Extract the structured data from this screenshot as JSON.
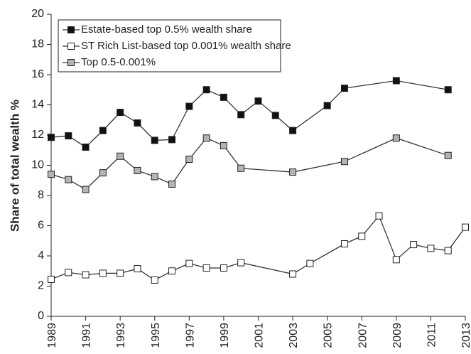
{
  "chart_data": {
    "type": "line",
    "y_label": "Share of total wealth %",
    "xlim": [
      1989,
      2013
    ],
    "xticks": [
      1989,
      1991,
      1993,
      1995,
      1997,
      1999,
      2001,
      2003,
      2005,
      2007,
      2009,
      2011,
      2013
    ],
    "ylim": [
      0,
      20
    ],
    "yticks": [
      0,
      2,
      4,
      6,
      8,
      10,
      12,
      14,
      16,
      18,
      20
    ],
    "grid": false,
    "legend": "upper left",
    "series": [
      {
        "name": "Estate-based top 0.5% wealth share",
        "color": "#111111",
        "x": [
          1989,
          1990,
          1991,
          1992,
          1993,
          1994,
          1995,
          1996,
          1997,
          1998,
          1999,
          2000,
          2001,
          2002,
          2003,
          2005,
          2006,
          2009,
          2012
        ],
        "values": [
          11.85,
          11.95,
          11.2,
          12.3,
          13.5,
          12.8,
          11.65,
          11.7,
          13.9,
          15.0,
          14.5,
          13.35,
          14.25,
          13.3,
          12.3,
          13.95,
          15.1,
          15.6,
          15.0
        ]
      },
      {
        "name": "ST Rich List-based top 0.001% wealth share",
        "color": "#ffffff",
        "x": [
          1989,
          1990,
          1991,
          1992,
          1993,
          1994,
          1995,
          1996,
          1997,
          1998,
          1999,
          2000,
          2003,
          2004,
          2006,
          2007,
          2008,
          2009,
          2010,
          2011,
          2012,
          2013
        ],
        "values": [
          2.45,
          2.9,
          2.75,
          2.85,
          2.85,
          3.15,
          2.4,
          3.0,
          3.5,
          3.2,
          3.2,
          3.55,
          2.8,
          3.5,
          4.8,
          5.3,
          6.65,
          3.75,
          4.75,
          4.5,
          4.35,
          5.9
        ]
      },
      {
        "name": "Top 0.5-0.001%",
        "color": "#b4b4b4",
        "x": [
          1989,
          1990,
          1991,
          1992,
          1993,
          1994,
          1995,
          1996,
          1997,
          1998,
          1999,
          2000,
          2003,
          2006,
          2009,
          2012
        ],
        "values": [
          9.4,
          9.05,
          8.4,
          9.5,
          10.6,
          9.65,
          9.25,
          8.75,
          10.4,
          11.8,
          11.3,
          9.8,
          9.55,
          10.25,
          11.8,
          10.65
        ]
      }
    ]
  }
}
